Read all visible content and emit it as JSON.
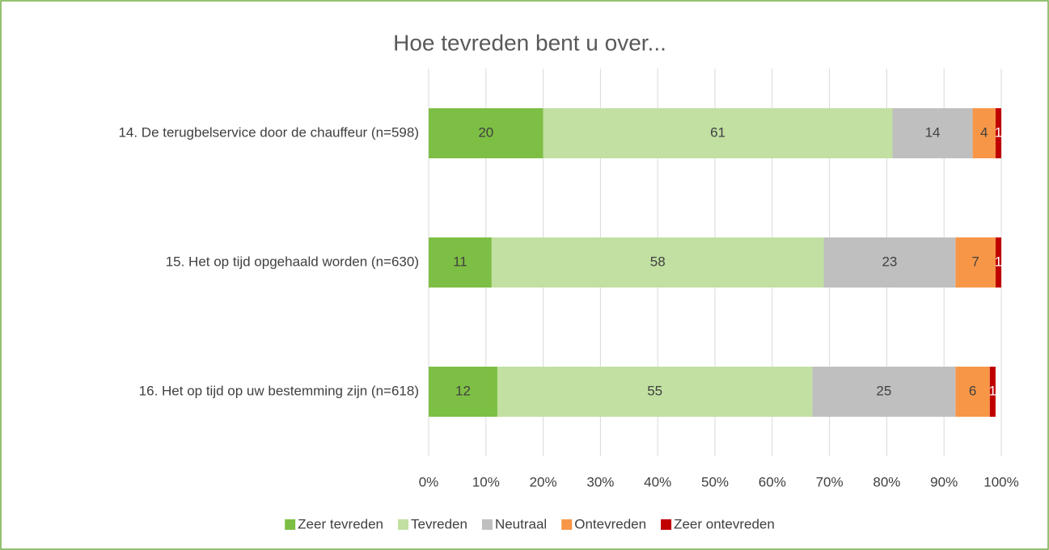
{
  "chart_data": {
    "type": "stacked-bar-horizontal",
    "title": "Hoe tevreden bent u over...",
    "categories": [
      "14. De terugbelservice door de chauffeur (n=598)",
      "15. Het op tijd opgehaald worden (n=630)",
      "16. Het op tijd op uw bestemming zijn (n=618)"
    ],
    "series": [
      {
        "name": "Zeer tevreden",
        "color": "#7dbf44",
        "values": [
          20,
          11,
          12
        ]
      },
      {
        "name": "Tevreden",
        "color": "#c1e0a2",
        "values": [
          61,
          58,
          55
        ]
      },
      {
        "name": "Neutraal",
        "color": "#bfbfbf",
        "values": [
          14,
          23,
          25
        ]
      },
      {
        "name": "Ontevreden",
        "color": "#f79646",
        "values": [
          4,
          7,
          6
        ]
      },
      {
        "name": "Zeer ontevreden",
        "color": "#c00000",
        "values": [
          1,
          1,
          1
        ]
      }
    ],
    "xlim": [
      0,
      100
    ],
    "xticks": [
      {
        "value": 0,
        "label": "0%"
      },
      {
        "value": 10,
        "label": "10%"
      },
      {
        "value": 20,
        "label": "20%"
      },
      {
        "value": 30,
        "label": "30%"
      },
      {
        "value": 40,
        "label": "40%"
      },
      {
        "value": 50,
        "label": "50%"
      },
      {
        "value": 60,
        "label": "60%"
      },
      {
        "value": 70,
        "label": "70%"
      },
      {
        "value": 80,
        "label": "80%"
      },
      {
        "value": 90,
        "label": "90%"
      },
      {
        "value": 100,
        "label": "100%"
      }
    ],
    "grid": true,
    "legend": "bottom"
  }
}
